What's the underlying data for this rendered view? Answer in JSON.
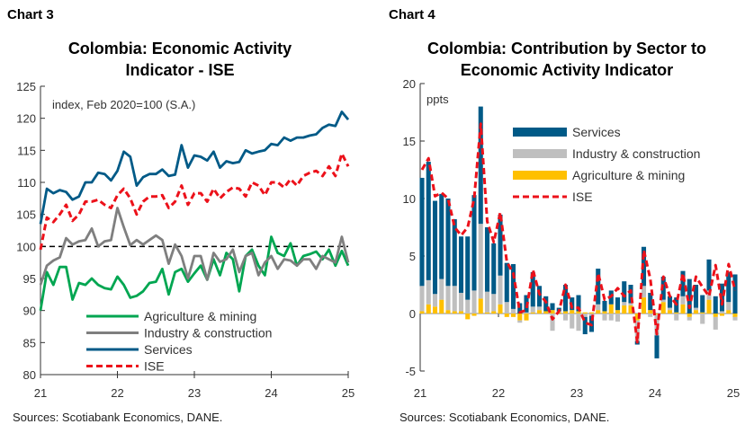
{
  "chart_data": [
    {
      "label": "Chart 3",
      "type": "line",
      "title": "Colombia: Economic Activity Indicator - ISE",
      "annotation": "index, Feb 2020=100 (S.A.)",
      "source": "Sources: Scotiabank Economics, DANE.",
      "xlabel": "",
      "ylabel": "",
      "xticks": [
        "21",
        "22",
        "23",
        "24",
        "25"
      ],
      "yticks": [
        80,
        85,
        90,
        95,
        100,
        105,
        110,
        115,
        120,
        125
      ],
      "ylim": [
        80,
        125
      ],
      "x_range": [
        "Jan 2021",
        "Jan 2025"
      ],
      "reference_line": 100,
      "legend_position": "bottom",
      "series": [
        {
          "name": "Agriculture & mining",
          "color": "#00a651",
          "style": "solid",
          "values": [
            90,
            96,
            94,
            96.8,
            96.8,
            91.7,
            94.3,
            94,
            95,
            94,
            93.5,
            93.3,
            95.3,
            94,
            92,
            92.3,
            93,
            94.3,
            94.5,
            96.5,
            92.5,
            96,
            96.5,
            94.5,
            95.8,
            97,
            94.8,
            98,
            95.5,
            99,
            98,
            93,
            98.5,
            99.5,
            97,
            95.5,
            101.5,
            99,
            98.5,
            100.5,
            97,
            98.5,
            98.8,
            99.2,
            98,
            99.5,
            97,
            99.3,
            97
          ]
        },
        {
          "name": "Industry & construction",
          "color": "#7f7f7f",
          "style": "solid",
          "values": [
            94,
            97,
            97.8,
            98.3,
            101.3,
            100.3,
            100.8,
            101,
            102.8,
            100,
            100.8,
            101,
            106,
            103,
            100.2,
            101,
            100.3,
            101,
            101.7,
            101,
            97.3,
            100.3,
            98.5,
            95,
            98.5,
            98.5,
            94.8,
            99,
            97.6,
            98,
            99.5,
            96,
            98.5,
            99,
            95.5,
            97.5,
            98.5,
            96.5,
            98,
            97.8,
            97,
            98,
            98,
            96.5,
            98.5,
            98,
            97.5,
            101.5,
            97.5
          ]
        },
        {
          "name": "Services",
          "color": "#005a87",
          "style": "solid",
          "values": [
            103.5,
            109,
            108.3,
            108.8,
            108.5,
            107.3,
            107.8,
            110,
            110,
            111.5,
            111.3,
            110.3,
            111.8,
            114.8,
            114,
            109.5,
            110.8,
            111.3,
            111.3,
            112,
            111,
            111.2,
            115.8,
            112.3,
            114.2,
            114,
            113.4,
            114.8,
            112.3,
            113.3,
            113,
            113.2,
            115,
            114.5,
            114.8,
            115,
            116,
            115.8,
            117,
            116.5,
            117,
            117,
            117.3,
            117.5,
            118.5,
            119,
            118.8,
            121,
            119.8
          ]
        },
        {
          "name": "ISE",
          "color": "#ec111a",
          "style": "dashed",
          "values": [
            99.5,
            104.5,
            103.8,
            105,
            106.5,
            104,
            105,
            107,
            107,
            107.3,
            106.5,
            106,
            108,
            109,
            107.5,
            105,
            107,
            107.8,
            107.8,
            108,
            106,
            107,
            109.5,
            106.5,
            108.3,
            108.3,
            107,
            109,
            107.5,
            108.5,
            109.2,
            109,
            107.8,
            110,
            109.5,
            108,
            110,
            110,
            109.2,
            110.5,
            109.5,
            111,
            111.5,
            111.8,
            111,
            112.5,
            111,
            114.5,
            112.5
          ]
        }
      ]
    },
    {
      "label": "Chart 4",
      "type": "bar",
      "stacked": true,
      "title": "Colombia: Contribution by Sector to Economic Activity Indicator",
      "annotation": "ppts",
      "source": "Sources: Scotiabank Economics, DANE.",
      "xlabel": "",
      "ylabel": "",
      "xticks": [
        "21",
        "22",
        "23",
        "24",
        "25"
      ],
      "yticks": [
        -5,
        0,
        5,
        10,
        15,
        20
      ],
      "ylim": [
        -5,
        20
      ],
      "x_range": [
        "Jan 2021",
        "Jan 2025"
      ],
      "legend_position": "top-right",
      "series": [
        {
          "name": "Services",
          "color": "#005a87",
          "values": [
            9.4,
            10.3,
            8.1,
            7.4,
            7.6,
            5.8,
            4.9,
            5.5,
            8.3,
            10.2,
            5.6,
            4.4,
            5.3,
            3.4,
            3.9,
            0.9,
            1.5,
            3.0,
            1.8,
            1.3,
            0.6,
            0.3,
            2.3,
            1.1,
            1.4,
            -1.5,
            -1.4,
            3.1,
            0.9,
            1.2,
            1.1,
            1.8,
            1.6,
            -0.3,
            3.4,
            1.5,
            -2.0,
            2.0,
            1.0,
            1.3,
            2.2,
            3.0,
            2.0,
            1.5,
            2.7,
            1.5,
            2.4,
            2.6,
            3.4
          ]
        },
        {
          "name": "Industry & construction",
          "color": "#bfbfbf",
          "values": [
            2.2,
            2.1,
            1.1,
            1.8,
            2.1,
            2.2,
            1.6,
            1.2,
            2.0,
            6.5,
            1.8,
            1.5,
            2.5,
            1.0,
            0.4,
            -0.2,
            0.1,
            0.5,
            0.3,
            0,
            -1.5,
            0.1,
            -0.6,
            -1.3,
            -1.5,
            -0.3,
            -0.2,
            0.5,
            -0.6,
            -0.6,
            -0.7,
            0.3,
            0.2,
            -1.8,
            1.0,
            -0.3,
            -1.8,
            0.2,
            0.2,
            -0.6,
            0.7,
            -0.3,
            0.2,
            -0.9,
            0.8,
            -1.1,
            0.2,
            0.7,
            -0.3
          ]
        },
        {
          "name": "Agriculture & mining",
          "color": "#ffc000",
          "values": [
            0.2,
            0.8,
            0.6,
            1.2,
            0.3,
            0.2,
            0.2,
            -0.5,
            -0.2,
            1.3,
            0.1,
            0.2,
            0.8,
            -0.3,
            -0.3,
            -0.6,
            -0.6,
            0.1,
            0.3,
            0.2,
            0.3,
            0.1,
            0.2,
            0.3,
            0.2,
            0.1,
            0.1,
            0.3,
            0.2,
            0.8,
            0.3,
            0.7,
            0.7,
            -0.6,
            1.4,
            0.3,
            -0.1,
            1.0,
            0.3,
            0.1,
            0.8,
            -0.3,
            0.3,
            0.1,
            1.2,
            -0.3,
            -0.2,
            0.3,
            -0.3
          ]
        },
        {
          "name": "ISE",
          "color": "#ec111a",
          "type": "line",
          "style": "dashed",
          "values": [
            12.5,
            13.5,
            10.2,
            10.5,
            10,
            7.5,
            6.8,
            7.5,
            10,
            16.5,
            8,
            6.2,
            8.8,
            4.5,
            3.5,
            0.1,
            0.3,
            3.8,
            1.7,
            1,
            -0.5,
            0.2,
            2.5,
            0.5,
            0.5,
            -0.8,
            -1,
            3.5,
            1.2,
            1.5,
            2.2,
            1.5,
            2.0,
            -2.5,
            5.5,
            3.0,
            -1.8,
            3.2,
            1.5,
            0.8,
            3.5,
            0.5,
            3.2,
            2.3,
            1.5,
            4.2,
            0.8,
            4.3,
            2.0
          ]
        }
      ]
    }
  ]
}
